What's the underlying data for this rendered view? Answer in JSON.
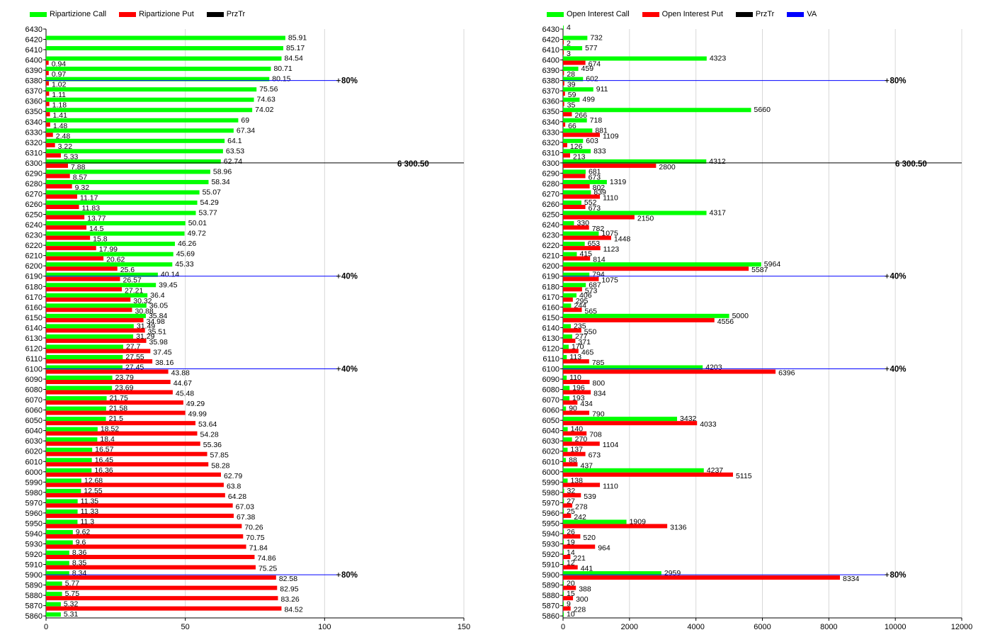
{
  "chart_data": [
    {
      "type": "bar",
      "orientation": "horizontal",
      "legend": [
        "Ripartizione Call",
        "Ripartizione Put",
        "PrzTr"
      ],
      "colors": {
        "call": "#00ff00",
        "put": "#ff0000",
        "prztr": "#000000",
        "va": "#0000ff"
      },
      "categories": [
        "6430",
        "6420",
        "6410",
        "6400",
        "6390",
        "6380",
        "6370",
        "6360",
        "6350",
        "6340",
        "6330",
        "6320",
        "6310",
        "6300",
        "6290",
        "6280",
        "6270",
        "6260",
        "6250",
        "6240",
        "6230",
        "6220",
        "6210",
        "6200",
        "6190",
        "6180",
        "6170",
        "6160",
        "6150",
        "6140",
        "6130",
        "6120",
        "6110",
        "6100",
        "6090",
        "6080",
        "6070",
        "6060",
        "6050",
        "6040",
        "6030",
        "6020",
        "6010",
        "6000",
        "5990",
        "5980",
        "5970",
        "5960",
        "5950",
        "5940",
        "5930",
        "5920",
        "5910",
        "5900",
        "5890",
        "5880",
        "5870",
        "5860"
      ],
      "series": [
        {
          "name": "Ripartizione Call",
          "values": [
            null,
            85.91,
            85.17,
            84.54,
            80.71,
            80.15,
            75.56,
            74.63,
            74.02,
            69,
            67.34,
            64.1,
            63.53,
            62.74,
            58.96,
            58.34,
            55.07,
            54.29,
            53.77,
            50.01,
            49.72,
            46.26,
            45.69,
            45.33,
            40.14,
            39.45,
            36.4,
            36.05,
            35.84,
            31.49,
            31.29,
            27.7,
            27.55,
            27.45,
            23.79,
            23.69,
            21.75,
            21.58,
            21.5,
            18.52,
            18.4,
            16.57,
            16.45,
            16.36,
            12.68,
            12.55,
            11.35,
            11.33,
            11.3,
            9.62,
            9.6,
            8.36,
            8.35,
            8.34,
            5.77,
            5.75,
            5.32,
            5.31
          ]
        },
        {
          "name": "Ripartizione Put",
          "values": [
            null,
            null,
            null,
            0.94,
            0.97,
            1.02,
            1.11,
            1.18,
            1.41,
            1.48,
            2.48,
            3.22,
            5.33,
            7.88,
            8.57,
            9.32,
            11.17,
            11.83,
            13.77,
            14.5,
            15.8,
            17.99,
            20.62,
            25.6,
            26.57,
            27.21,
            30.32,
            30.88,
            34.98,
            35.51,
            35.98,
            37.45,
            38.16,
            43.88,
            44.67,
            45.48,
            49.29,
            49.99,
            53.64,
            54.28,
            55.36,
            57.85,
            58.28,
            62.79,
            63.8,
            64.28,
            67.03,
            67.38,
            70.26,
            70.75,
            71.84,
            74.86,
            75.25,
            82.58,
            82.95,
            83.26,
            84.52,
            null
          ]
        }
      ],
      "xlim": [
        0,
        150
      ],
      "xticks": [
        "0",
        "50",
        "100",
        "150"
      ],
      "reference_lines": [
        {
          "strike": "6380",
          "label": "80%",
          "color": "#0000ff",
          "x_end": 105
        },
        {
          "strike": "6300",
          "label": "6 300.50",
          "color": "#000000",
          "x_end": 150
        },
        {
          "strike": "6190",
          "label": "40%",
          "color": "#0000ff",
          "x_end": 105
        },
        {
          "strike": "6100",
          "label": "40%",
          "color": "#0000ff",
          "x_end": 105
        },
        {
          "strike": "5900",
          "label": "80%",
          "color": "#0000ff",
          "x_end": 105
        }
      ]
    },
    {
      "type": "bar",
      "orientation": "horizontal",
      "legend": [
        "Open Interest Call",
        "Open Interest Put",
        "PrzTr",
        "VA"
      ],
      "colors": {
        "call": "#00ff00",
        "put": "#ff0000",
        "prztr": "#000000",
        "va": "#0000ff"
      },
      "categories": [
        "6430",
        "6420",
        "6410",
        "6400",
        "6390",
        "6380",
        "6370",
        "6360",
        "6350",
        "6340",
        "6330",
        "6320",
        "6310",
        "6300",
        "6290",
        "6280",
        "6270",
        "6260",
        "6250",
        "6240",
        "6230",
        "6220",
        "6210",
        "6200",
        "6190",
        "6180",
        "6170",
        "6160",
        "6150",
        "6140",
        "6130",
        "6120",
        "6110",
        "6100",
        "6090",
        "6080",
        "6070",
        "6060",
        "6050",
        "6040",
        "6030",
        "6020",
        "6010",
        "6000",
        "5990",
        "5980",
        "5970",
        "5960",
        "5950",
        "5940",
        "5930",
        "5920",
        "5910",
        "5900",
        "5890",
        "5880",
        "5870",
        "5860"
      ],
      "series": [
        {
          "name": "Open Interest Call",
          "values": [
            4,
            732,
            577,
            4323,
            459,
            602,
            911,
            499,
            5660,
            718,
            881,
            603,
            833,
            4312,
            681,
            1319,
            839,
            552,
            4317,
            330,
            1075,
            653,
            415,
            5964,
            794,
            687,
            406,
            244,
            5000,
            235,
            277,
            170,
            113,
            4203,
            110,
            196,
            193,
            90,
            3432,
            140,
            270,
            137,
            88,
            4237,
            138,
            32,
            27,
            25,
            1909,
            26,
            19,
            14,
            12,
            2959,
            20,
            15,
            9,
            10
          ]
        },
        {
          "name": "Open Interest Put",
          "values": [
            null,
            2,
            3,
            674,
            28,
            39,
            59,
            35,
            266,
            66,
            1109,
            126,
            213,
            2800,
            673,
            802,
            1110,
            673,
            2150,
            782,
            1448,
            1123,
            814,
            5587,
            1075,
            573,
            295,
            565,
            4556,
            550,
            371,
            465,
            785,
            6396,
            800,
            834,
            434,
            790,
            4033,
            708,
            1104,
            673,
            437,
            5115,
            1110,
            539,
            278,
            242,
            3136,
            520,
            964,
            221,
            441,
            8334,
            388,
            300,
            228,
            null
          ]
        }
      ],
      "xlim": [
        0,
        12000
      ],
      "xticks": [
        "0",
        "2000",
        "4000",
        "6000",
        "8000",
        "10000",
        "12000"
      ],
      "reference_lines": [
        {
          "strike": "6380",
          "label": "80%",
          "color": "#0000ff",
          "x_end": 9750
        },
        {
          "strike": "6300",
          "label": "6 300.50",
          "color": "#000000",
          "x_end": 12000
        },
        {
          "strike": "6190",
          "label": "40%",
          "color": "#0000ff",
          "x_end": 9750
        },
        {
          "strike": "6100",
          "label": "40%",
          "color": "#0000ff",
          "x_end": 9750
        },
        {
          "strike": "5900",
          "label": "80%",
          "color": "#0000ff",
          "x_end": 9750
        }
      ]
    }
  ]
}
